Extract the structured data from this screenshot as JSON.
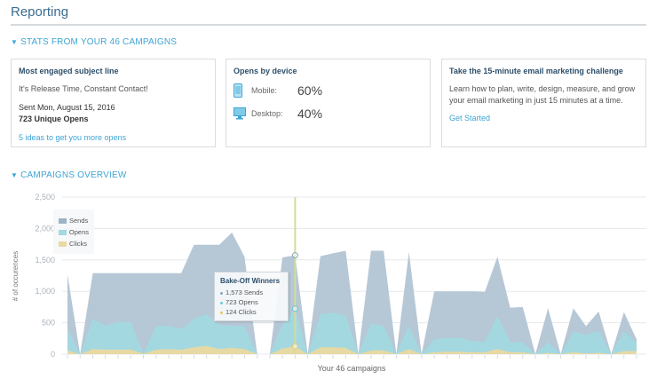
{
  "header": {
    "title": "Reporting"
  },
  "stats_section": {
    "label": "STATS FROM YOUR 46 CAMPAIGNS"
  },
  "cards": {
    "subject": {
      "title": "Most engaged subject line",
      "subject": "It's Release Time, Constant Contact!",
      "sent": "Sent Mon, August 15, 2016",
      "opens": "723 Unique Opens",
      "link": "5 ideas to get you more opens"
    },
    "device": {
      "title": "Opens by device",
      "mobile_label": "Mobile:",
      "mobile_value": "60%",
      "desktop_label": "Desktop:",
      "desktop_value": "40%",
      "icons": [
        "mobile-phone-icon",
        "desktop-monitor-icon"
      ]
    },
    "challenge": {
      "title": "Take the 15-minute email marketing challenge",
      "body": "Learn how to plan, write, design, measure, and grow your email marketing in just 15 minutes at a time.",
      "link": "Get Started"
    }
  },
  "overview_section": {
    "label": "CAMPAIGNS OVERVIEW"
  },
  "colors": {
    "accent": "#3ea4d4",
    "sends": "#b6c7d6",
    "opens": "#a3d9e0",
    "clicks": "#ead9a0",
    "highlight": "#d4dc9a"
  },
  "tooltip": {
    "title": "Bake-Off Winners",
    "sends": "1,573 Sends",
    "opens": "723 Opens",
    "clicks": "124 Clicks"
  },
  "chart_data": {
    "type": "area",
    "stacking": "overlapping",
    "xlabel": "Your 46 campaigns",
    "ylabel": "# of occurences",
    "ylim": [
      0,
      2500
    ],
    "yticks": [
      "0",
      "500",
      "1,000",
      "1,500",
      "2,000",
      "2,500"
    ],
    "ytick_values": [
      0,
      500,
      1000,
      1500,
      2000,
      2500
    ],
    "grid": true,
    "legend": "top-left",
    "highlight_index": 18,
    "series": [
      {
        "name": "Sends",
        "values": [
          1270,
          0,
          1290,
          1290,
          1290,
          1290,
          1290,
          1290,
          1290,
          1290,
          1740,
          1740,
          1740,
          1935,
          1550,
          0,
          0,
          1540,
          1573,
          0,
          1560,
          1605,
          1645,
          0,
          1645,
          1645,
          0,
          1620,
          0,
          1000,
          1000,
          1000,
          1000,
          990,
          1550,
          740,
          750,
          0,
          730,
          0,
          730,
          445,
          680,
          0,
          670,
          235
        ]
      },
      {
        "name": "Opens",
        "values": [
          400,
          0,
          560,
          450,
          515,
          515,
          10,
          450,
          450,
          400,
          560,
          635,
          470,
          450,
          450,
          0,
          0,
          470,
          723,
          0,
          635,
          660,
          610,
          0,
          490,
          450,
          0,
          450,
          0,
          235,
          260,
          260,
          210,
          200,
          610,
          190,
          190,
          0,
          190,
          0,
          360,
          305,
          365,
          0,
          360,
          190
        ]
      },
      {
        "name": "Clicks",
        "values": [
          60,
          0,
          80,
          70,
          70,
          75,
          5,
          70,
          80,
          70,
          110,
          130,
          80,
          100,
          80,
          0,
          0,
          90,
          124,
          0,
          110,
          110,
          100,
          0,
          60,
          60,
          0,
          80,
          0,
          30,
          40,
          40,
          30,
          30,
          80,
          30,
          30,
          0,
          20,
          0,
          30,
          10,
          20,
          0,
          50,
          50
        ]
      }
    ]
  }
}
